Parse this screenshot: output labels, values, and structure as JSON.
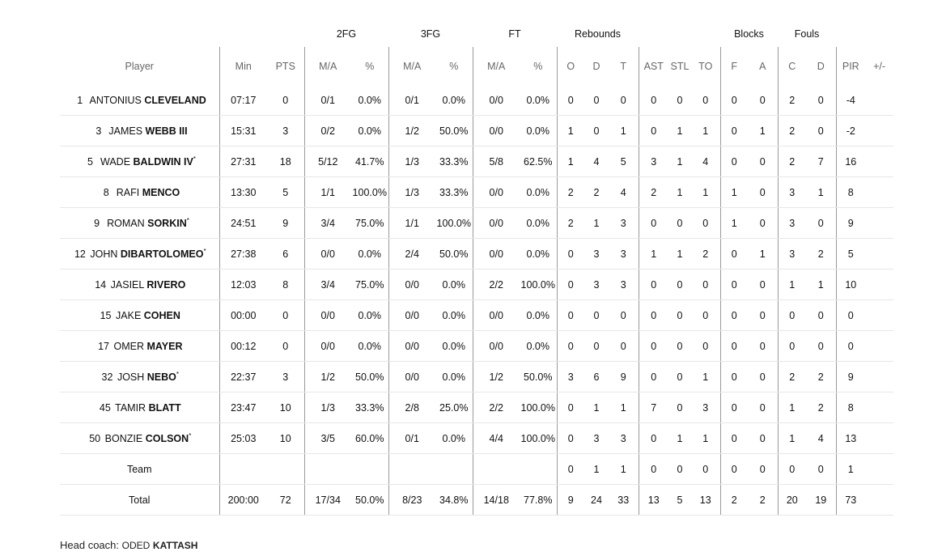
{
  "headers": {
    "groups": {
      "fg2": "2FG",
      "fg3": "3FG",
      "ft": "FT",
      "rebounds": "Rebounds",
      "blocks": "Blocks",
      "fouls": "Fouls"
    },
    "columns": {
      "player": "Player",
      "min": "Min",
      "pts": "PTS",
      "fg2_ma": "M/A",
      "fg2_pct": "%",
      "fg3_ma": "M/A",
      "fg3_pct": "%",
      "ft_ma": "M/A",
      "ft_pct": "%",
      "reb_o": "O",
      "reb_d": "D",
      "reb_t": "T",
      "ast": "AST",
      "stl": "STL",
      "to": "TO",
      "blk_f": "F",
      "blk_a": "A",
      "foul_c": "C",
      "foul_d": "D",
      "pir": "PIR",
      "pm": "+/-"
    }
  },
  "players": [
    {
      "num": "1",
      "first": "ANTONIUS",
      "last": "CLEVELAND",
      "starter": "",
      "min": "07:17",
      "pts": "0",
      "fg2_ma": "0/1",
      "fg2_pct": "0.0%",
      "fg3_ma": "0/1",
      "fg3_pct": "0.0%",
      "ft_ma": "0/0",
      "ft_pct": "0.0%",
      "reb_o": "0",
      "reb_d": "0",
      "reb_t": "0",
      "ast": "0",
      "stl": "0",
      "to": "0",
      "blk_f": "0",
      "blk_a": "0",
      "foul_c": "2",
      "foul_d": "0",
      "pir": "-4",
      "pm": ""
    },
    {
      "num": "3",
      "first": "JAMES",
      "last": "WEBB III",
      "starter": "",
      "min": "15:31",
      "pts": "3",
      "fg2_ma": "0/2",
      "fg2_pct": "0.0%",
      "fg3_ma": "1/2",
      "fg3_pct": "50.0%",
      "ft_ma": "0/0",
      "ft_pct": "0.0%",
      "reb_o": "1",
      "reb_d": "0",
      "reb_t": "1",
      "ast": "0",
      "stl": "1",
      "to": "1",
      "blk_f": "0",
      "blk_a": "1",
      "foul_c": "2",
      "foul_d": "0",
      "pir": "-2",
      "pm": ""
    },
    {
      "num": "5",
      "first": "WADE",
      "last": "BALDWIN IV",
      "starter": "*",
      "min": "27:31",
      "pts": "18",
      "fg2_ma": "5/12",
      "fg2_pct": "41.7%",
      "fg3_ma": "1/3",
      "fg3_pct": "33.3%",
      "ft_ma": "5/8",
      "ft_pct": "62.5%",
      "reb_o": "1",
      "reb_d": "4",
      "reb_t": "5",
      "ast": "3",
      "stl": "1",
      "to": "4",
      "blk_f": "0",
      "blk_a": "0",
      "foul_c": "2",
      "foul_d": "7",
      "pir": "16",
      "pm": ""
    },
    {
      "num": "8",
      "first": "RAFI",
      "last": "MENCO",
      "starter": "",
      "min": "13:30",
      "pts": "5",
      "fg2_ma": "1/1",
      "fg2_pct": "100.0%",
      "fg3_ma": "1/3",
      "fg3_pct": "33.3%",
      "ft_ma": "0/0",
      "ft_pct": "0.0%",
      "reb_o": "2",
      "reb_d": "2",
      "reb_t": "4",
      "ast": "2",
      "stl": "1",
      "to": "1",
      "blk_f": "1",
      "blk_a": "0",
      "foul_c": "3",
      "foul_d": "1",
      "pir": "8",
      "pm": ""
    },
    {
      "num": "9",
      "first": "ROMAN",
      "last": "SORKIN",
      "starter": "*",
      "min": "24:51",
      "pts": "9",
      "fg2_ma": "3/4",
      "fg2_pct": "75.0%",
      "fg3_ma": "1/1",
      "fg3_pct": "100.0%",
      "ft_ma": "0/0",
      "ft_pct": "0.0%",
      "reb_o": "2",
      "reb_d": "1",
      "reb_t": "3",
      "ast": "0",
      "stl": "0",
      "to": "0",
      "blk_f": "1",
      "blk_a": "0",
      "foul_c": "3",
      "foul_d": "0",
      "pir": "9",
      "pm": ""
    },
    {
      "num": "12",
      "first": "JOHN",
      "last": "DIBARTOLOMEO",
      "starter": "*",
      "min": "27:38",
      "pts": "6",
      "fg2_ma": "0/0",
      "fg2_pct": "0.0%",
      "fg3_ma": "2/4",
      "fg3_pct": "50.0%",
      "ft_ma": "0/0",
      "ft_pct": "0.0%",
      "reb_o": "0",
      "reb_d": "3",
      "reb_t": "3",
      "ast": "1",
      "stl": "1",
      "to": "2",
      "blk_f": "0",
      "blk_a": "1",
      "foul_c": "3",
      "foul_d": "2",
      "pir": "5",
      "pm": ""
    },
    {
      "num": "14",
      "first": "JASIEL",
      "last": "RIVERO",
      "starter": "",
      "min": "12:03",
      "pts": "8",
      "fg2_ma": "3/4",
      "fg2_pct": "75.0%",
      "fg3_ma": "0/0",
      "fg3_pct": "0.0%",
      "ft_ma": "2/2",
      "ft_pct": "100.0%",
      "reb_o": "0",
      "reb_d": "3",
      "reb_t": "3",
      "ast": "0",
      "stl": "0",
      "to": "0",
      "blk_f": "0",
      "blk_a": "0",
      "foul_c": "1",
      "foul_d": "1",
      "pir": "10",
      "pm": ""
    },
    {
      "num": "15",
      "first": "JAKE",
      "last": "COHEN",
      "starter": "",
      "min": "00:00",
      "pts": "0",
      "fg2_ma": "0/0",
      "fg2_pct": "0.0%",
      "fg3_ma": "0/0",
      "fg3_pct": "0.0%",
      "ft_ma": "0/0",
      "ft_pct": "0.0%",
      "reb_o": "0",
      "reb_d": "0",
      "reb_t": "0",
      "ast": "0",
      "stl": "0",
      "to": "0",
      "blk_f": "0",
      "blk_a": "0",
      "foul_c": "0",
      "foul_d": "0",
      "pir": "0",
      "pm": ""
    },
    {
      "num": "17",
      "first": "OMER",
      "last": "MAYER",
      "starter": "",
      "min": "00:12",
      "pts": "0",
      "fg2_ma": "0/0",
      "fg2_pct": "0.0%",
      "fg3_ma": "0/0",
      "fg3_pct": "0.0%",
      "ft_ma": "0/0",
      "ft_pct": "0.0%",
      "reb_o": "0",
      "reb_d": "0",
      "reb_t": "0",
      "ast": "0",
      "stl": "0",
      "to": "0",
      "blk_f": "0",
      "blk_a": "0",
      "foul_c": "0",
      "foul_d": "0",
      "pir": "0",
      "pm": ""
    },
    {
      "num": "32",
      "first": "JOSH",
      "last": "NEBO",
      "starter": "*",
      "min": "22:37",
      "pts": "3",
      "fg2_ma": "1/2",
      "fg2_pct": "50.0%",
      "fg3_ma": "0/0",
      "fg3_pct": "0.0%",
      "ft_ma": "1/2",
      "ft_pct": "50.0%",
      "reb_o": "3",
      "reb_d": "6",
      "reb_t": "9",
      "ast": "0",
      "stl": "0",
      "to": "1",
      "blk_f": "0",
      "blk_a": "0",
      "foul_c": "2",
      "foul_d": "2",
      "pir": "9",
      "pm": ""
    },
    {
      "num": "45",
      "first": "TAMIR",
      "last": "BLATT",
      "starter": "",
      "min": "23:47",
      "pts": "10",
      "fg2_ma": "1/3",
      "fg2_pct": "33.3%",
      "fg3_ma": "2/8",
      "fg3_pct": "25.0%",
      "ft_ma": "2/2",
      "ft_pct": "100.0%",
      "reb_o": "0",
      "reb_d": "1",
      "reb_t": "1",
      "ast": "7",
      "stl": "0",
      "to": "3",
      "blk_f": "0",
      "blk_a": "0",
      "foul_c": "1",
      "foul_d": "2",
      "pir": "8",
      "pm": ""
    },
    {
      "num": "50",
      "first": "BONZIE",
      "last": "COLSON",
      "starter": "*",
      "min": "25:03",
      "pts": "10",
      "fg2_ma": "3/5",
      "fg2_pct": "60.0%",
      "fg3_ma": "0/1",
      "fg3_pct": "0.0%",
      "ft_ma": "4/4",
      "ft_pct": "100.0%",
      "reb_o": "0",
      "reb_d": "3",
      "reb_t": "3",
      "ast": "0",
      "stl": "1",
      "to": "1",
      "blk_f": "0",
      "blk_a": "0",
      "foul_c": "1",
      "foul_d": "4",
      "pir": "13",
      "pm": ""
    }
  ],
  "team": {
    "label": "Team",
    "min": "",
    "pts": "",
    "fg2_ma": "",
    "fg2_pct": "",
    "fg3_ma": "",
    "fg3_pct": "",
    "ft_ma": "",
    "ft_pct": "",
    "reb_o": "0",
    "reb_d": "1",
    "reb_t": "1",
    "ast": "0",
    "stl": "0",
    "to": "0",
    "blk_f": "0",
    "blk_a": "0",
    "foul_c": "0",
    "foul_d": "0",
    "pir": "1",
    "pm": ""
  },
  "total": {
    "label": "Total",
    "min": "200:00",
    "pts": "72",
    "fg2_ma": "17/34",
    "fg2_pct": "50.0%",
    "fg3_ma": "8/23",
    "fg3_pct": "34.8%",
    "ft_ma": "14/18",
    "ft_pct": "77.8%",
    "reb_o": "9",
    "reb_d": "24",
    "reb_t": "33",
    "ast": "13",
    "stl": "5",
    "to": "13",
    "blk_f": "2",
    "blk_a": "2",
    "foul_c": "20",
    "foul_d": "19",
    "pir": "73",
    "pm": ""
  },
  "head_coach": {
    "label": "Head coach:",
    "first": "ODED",
    "last": "KATTASH"
  }
}
